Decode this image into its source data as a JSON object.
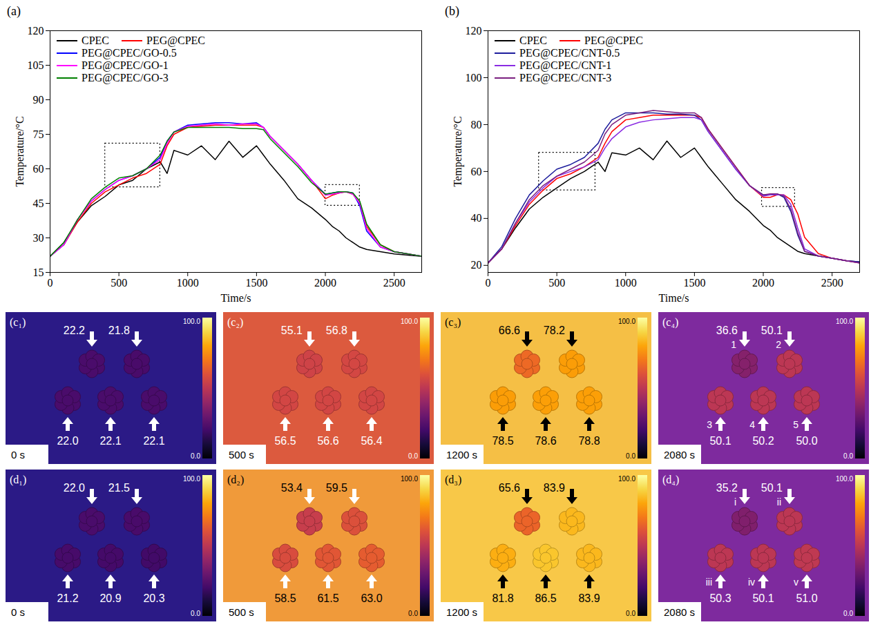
{
  "chart_data": [
    {
      "type": "line",
      "panel_label": "(a)",
      "x_label": "Time/s",
      "y_label": "Temperature/°C",
      "xlim": [
        0,
        2700
      ],
      "xticks": [
        0,
        500,
        1000,
        1500,
        2000,
        2500
      ],
      "ylim": [
        15,
        120
      ],
      "yticks": [
        15,
        30,
        45,
        60,
        75,
        90,
        105,
        120
      ],
      "legend": "upper left",
      "highlight_boxes": [
        {
          "x": [
            400,
            800
          ],
          "y": [
            52,
            71
          ]
        },
        {
          "x": [
            2000,
            2250
          ],
          "y": [
            44,
            53
          ]
        }
      ],
      "x": [
        0,
        100,
        200,
        300,
        400,
        500,
        600,
        700,
        800,
        850,
        900,
        1000,
        1100,
        1200,
        1300,
        1400,
        1500,
        1550,
        1600,
        1700,
        1800,
        1900,
        2000,
        2050,
        2100,
        2150,
        2200,
        2250,
        2300,
        2400,
        2500,
        2600,
        2700
      ],
      "series": [
        {
          "name": "CPEC",
          "color": "#000000",
          "values": [
            22,
            28,
            37,
            44,
            48,
            53,
            55,
            60,
            63,
            58,
            68,
            66,
            70,
            64,
            72,
            65,
            70,
            66,
            62,
            55,
            47,
            43,
            38,
            35,
            33,
            30,
            28,
            26,
            25,
            24,
            23,
            22.5,
            22
          ]
        },
        {
          "name": "PEG@CPEC",
          "color": "#ff0000",
          "values": [
            22,
            27,
            37,
            45,
            50,
            53,
            56,
            58,
            62,
            70,
            75,
            78,
            78.5,
            79,
            79,
            79,
            79,
            78,
            74,
            68,
            62,
            55,
            47,
            48.5,
            49.5,
            50,
            49,
            45,
            35,
            27,
            24,
            23,
            22
          ]
        },
        {
          "name": "PEG@CPEC/GO-0.5",
          "color": "#0000ff",
          "values": [
            22,
            27,
            38,
            46,
            51,
            55,
            57,
            60,
            65,
            72,
            76,
            79,
            79.5,
            80,
            80,
            79.5,
            80,
            78,
            74,
            68,
            62,
            55,
            49,
            49.5,
            50,
            50,
            49.5,
            44,
            33,
            26,
            24,
            23,
            22
          ]
        },
        {
          "name": "PEG@CPEC/GO-1",
          "color": "#ff00ff",
          "values": [
            22,
            27,
            38,
            46,
            51,
            55,
            57,
            60,
            64,
            71,
            76,
            78.5,
            79,
            79.5,
            79,
            79.5,
            79.5,
            78,
            74,
            68,
            62,
            55,
            48.5,
            49,
            49.5,
            50,
            49,
            45,
            34,
            26,
            24,
            23,
            22
          ]
        },
        {
          "name": "PEG@CPEC/GO-3",
          "color": "#008000",
          "values": [
            22,
            28,
            38,
            47,
            52,
            56,
            57,
            60,
            66,
            72,
            76,
            78,
            78,
            78,
            78,
            77.5,
            77.5,
            77,
            73,
            67,
            61,
            54,
            49,
            49.5,
            50,
            50,
            49.5,
            46,
            36,
            27,
            24,
            23,
            22
          ]
        }
      ]
    },
    {
      "type": "line",
      "panel_label": "(b)",
      "x_label": "Time/s",
      "y_label": "Temperature/°C",
      "xlim": [
        0,
        2700
      ],
      "xticks": [
        0,
        500,
        1000,
        1500,
        2000,
        2500
      ],
      "ylim": [
        17,
        120
      ],
      "yticks": [
        20,
        40,
        60,
        80,
        100,
        120
      ],
      "legend": "upper left",
      "highlight_boxes": [
        {
          "x": [
            370,
            780
          ],
          "y": [
            52,
            68
          ]
        },
        {
          "x": [
            1990,
            2230
          ],
          "y": [
            45,
            53
          ]
        }
      ],
      "x": [
        0,
        100,
        200,
        300,
        400,
        500,
        600,
        700,
        800,
        850,
        900,
        1000,
        1100,
        1200,
        1300,
        1400,
        1500,
        1550,
        1600,
        1700,
        1800,
        1900,
        2000,
        2050,
        2100,
        2150,
        2200,
        2250,
        2300,
        2400,
        2500,
        2600,
        2700
      ],
      "series": [
        {
          "name": "CPEC",
          "color": "#000000",
          "values": [
            21,
            27,
            36,
            44,
            49,
            53,
            57,
            60,
            64,
            60,
            68,
            67,
            70,
            65,
            73,
            66,
            70,
            66,
            62,
            55,
            48,
            43,
            37,
            35,
            32,
            30,
            28,
            26,
            25,
            24,
            23,
            22,
            21.5
          ]
        },
        {
          "name": "PEG@CPEC",
          "color": "#ff0000",
          "values": [
            21,
            27,
            37,
            46,
            52,
            57,
            59,
            62,
            66,
            72,
            77,
            82,
            83,
            84,
            84,
            84,
            84,
            83,
            78,
            70,
            62,
            54,
            49,
            49,
            50,
            50,
            48,
            42,
            32,
            25,
            23,
            22,
            21
          ]
        },
        {
          "name": "PEG@CPEC/CNT-0.5",
          "color": "#1c1c9c",
          "values": [
            21,
            28,
            40,
            50,
            56,
            61,
            63,
            66,
            72,
            78,
            82,
            85,
            85,
            85,
            84.5,
            84.5,
            84,
            82,
            77,
            69,
            61,
            54,
            50,
            50,
            50.5,
            49,
            43,
            33,
            26,
            24,
            23,
            22,
            21.5
          ]
        },
        {
          "name": "PEG@CPEC/CNT-1",
          "color": "#8a2be2",
          "values": [
            21,
            27,
            38,
            47,
            53,
            58,
            60,
            62,
            65,
            70,
            74,
            79,
            81,
            82,
            82.5,
            83,
            83,
            82,
            77,
            69,
            61,
            54,
            49.5,
            50,
            50,
            50,
            46,
            36,
            27,
            24,
            23,
            22,
            21
          ]
        },
        {
          "name": "PEG@CPEC/CNT-3",
          "color": "#7a1f7f",
          "values": [
            21,
            27,
            38,
            48,
            54,
            58,
            61,
            64,
            69,
            76,
            80,
            84,
            85,
            86,
            85.5,
            85,
            85,
            83,
            78,
            70,
            62,
            54,
            50,
            50.5,
            50.5,
            49.5,
            44,
            34,
            26,
            24,
            23,
            22,
            21
          ]
        }
      ]
    }
  ],
  "thermal_images": {
    "colorbar": {
      "max": "100.0",
      "min": "0.0"
    },
    "rows": [
      {
        "panels": [
          {
            "label": "(c₁)",
            "time": "0 s",
            "color": "#2b1a86",
            "samples": [
              "22.2",
              "21.8",
              "22.0",
              "22.1",
              "22.1"
            ]
          },
          {
            "label": "(c₂)",
            "time": "500 s",
            "color": "#dc5a3e",
            "samples": [
              "55.1",
              "56.8",
              "56.5",
              "56.6",
              "56.4"
            ]
          },
          {
            "label": "(c₃)",
            "time": "1200 s",
            "color": "#f5bf45",
            "samples": [
              "66.6",
              "78.2",
              "78.5",
              "78.6",
              "78.8"
            ]
          },
          {
            "label": "(c₄)",
            "time": "2080 s",
            "color": "#7e2a9e",
            "samples": [
              "36.6",
              "50.1",
              "50.1",
              "50.2",
              "50.0"
            ],
            "ids": [
              "1",
              "2",
              "3",
              "4",
              "5"
            ]
          }
        ]
      },
      {
        "panels": [
          {
            "label": "(d₁)",
            "time": "0 s",
            "color": "#2b1a86",
            "samples": [
              "22.0",
              "21.5",
              "21.2",
              "20.9",
              "20.3"
            ]
          },
          {
            "label": "(d₂)",
            "time": "500 s",
            "color": "#f09a3a",
            "samples": [
              "53.4",
              "59.5",
              "58.5",
              "61.5",
              "63.0"
            ]
          },
          {
            "label": "(d₃)",
            "time": "1200 s",
            "color": "#f8c848",
            "samples": [
              "65.6",
              "83.9",
              "81.8",
              "86.5",
              "83.9"
            ]
          },
          {
            "label": "(d₄)",
            "time": "2080 s",
            "color": "#7e2a9e",
            "samples": [
              "35.2",
              "50.1",
              "50.3",
              "50.1",
              "51.0"
            ],
            "ids": [
              "i",
              "ii",
              "iii",
              "iv",
              "v"
            ]
          }
        ]
      }
    ]
  }
}
